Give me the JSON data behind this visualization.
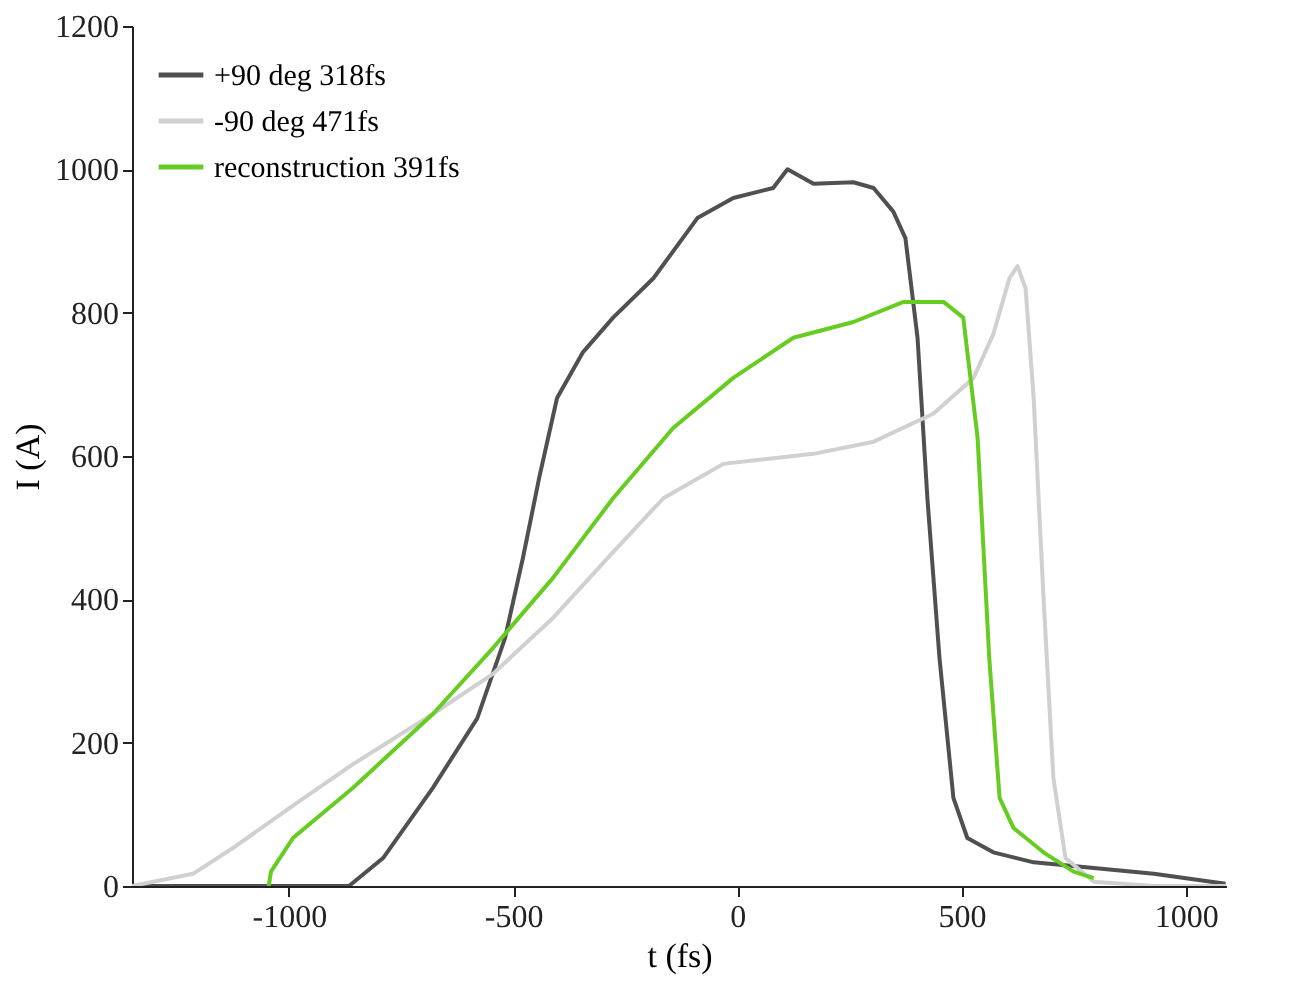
{
  "chart_data": {
    "type": "line",
    "xlabel": "t (fs)",
    "ylabel": "I (A)",
    "xlim": [
      -1350,
      1090
    ],
    "xticks": [
      -1000,
      -500,
      0,
      500,
      1000
    ],
    "ylim": [
      0,
      1200
    ],
    "yticks": [
      0,
      200,
      400,
      600,
      800,
      1000,
      1200
    ],
    "grid": false,
    "legend": "top left",
    "line_style": "solid",
    "marker": "none",
    "series": [
      {
        "name": "+90 deg 318fs",
        "color": "#505050",
        "x": [
          -1350,
          -866,
          -790,
          -679,
          -580,
          -518,
          -478,
          -442,
          -402,
          -344,
          -277,
          -187,
          -89,
          -9,
          80,
          112,
          170,
          259,
          304,
          348,
          375,
          402,
          424,
          451,
          482,
          513,
          571,
          661,
          795,
          929,
          1089
        ],
        "values": [
          0,
          0,
          39,
          137,
          234,
          346,
          458,
          569,
          681,
          745,
          793,
          848,
          932,
          960,
          974,
          1000,
          980,
          982,
          974,
          941,
          904,
          765,
          541,
          318,
          123,
          67,
          47,
          33,
          25,
          17,
          3
        ]
      },
      {
        "name": "-90 deg 471fs",
        "color": "#d0d0d0",
        "x": [
          -1350,
          -1214,
          -1125,
          -991,
          -857,
          -679,
          -545,
          -411,
          -277,
          -165,
          -31,
          170,
          304,
          437,
          527,
          571,
          607,
          625,
          643,
          661,
          683,
          705,
          732,
          795,
          929,
          1089
        ],
        "values": [
          0,
          17,
          53,
          112,
          170,
          240,
          296,
          374,
          466,
          541,
          589,
          603,
          620,
          659,
          709,
          770,
          848,
          865,
          834,
          681,
          402,
          151,
          39,
          6,
          0,
          0
        ]
      },
      {
        "name": "reconstruction 391fs",
        "color": "#66cc22",
        "x": [
          -1045,
          -1040,
          -991,
          -857,
          -679,
          -545,
          -411,
          -277,
          -143,
          -9,
          125,
          259,
          371,
          460,
          504,
          536,
          562,
          585,
          616,
          683,
          750,
          795
        ],
        "values": [
          0,
          20,
          67,
          137,
          240,
          332,
          430,
          541,
          639,
          709,
          765,
          787,
          815,
          815,
          793,
          625,
          318,
          123,
          81,
          47,
          20,
          11
        ]
      }
    ]
  }
}
